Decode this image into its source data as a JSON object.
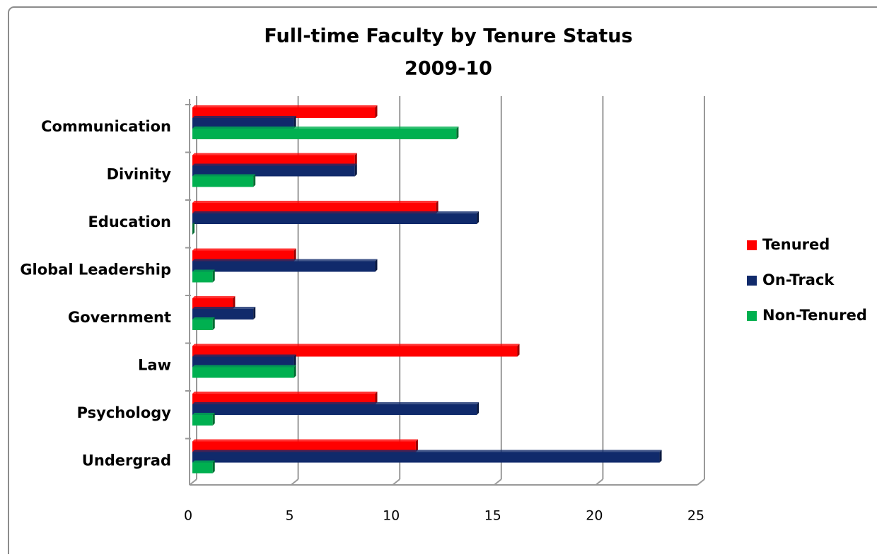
{
  "chart_data": {
    "type": "bar",
    "orientation": "horizontal",
    "title": "Full-time Faculty by Tenure Status",
    "subtitle": "2009-10",
    "categories": [
      "Communication",
      "Divinity",
      "Education",
      "Global Leadership",
      "Government",
      "Law",
      "Psychology",
      "Undergrad"
    ],
    "series": [
      {
        "name": "Tenured",
        "color": "#ff0000",
        "values": [
          9,
          8,
          12,
          5,
          2,
          16,
          9,
          11
        ]
      },
      {
        "name": "On-Track",
        "color": "#102a6b",
        "values": [
          5,
          8,
          14,
          9,
          3,
          5,
          14,
          23
        ]
      },
      {
        "name": "Non-Tenured",
        "color": "#00b050",
        "values": [
          13,
          3,
          0,
          1,
          1,
          5,
          1,
          1
        ]
      }
    ],
    "xlim": [
      0,
      25
    ],
    "xticks": [
      0,
      5,
      10,
      15,
      20,
      25
    ],
    "grid": true,
    "legend": "right"
  }
}
